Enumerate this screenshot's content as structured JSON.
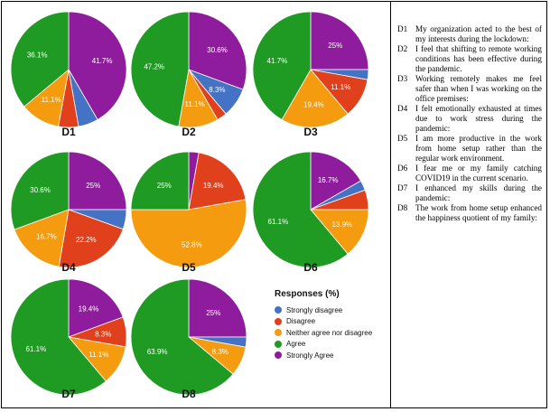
{
  "chart_data": [
    {
      "type": "pie",
      "title": "D1",
      "categories": [
        "Strongly disagree",
        "Disagree",
        "Neither agree nor disagree",
        "Agree",
        "Strongly Agree"
      ],
      "values": [
        5.6,
        5.6,
        11.1,
        36.1,
        41.7
      ],
      "labels": [
        "",
        "",
        "11.1%",
        "36.1%",
        "41.7%"
      ]
    },
    {
      "type": "pie",
      "title": "D2",
      "categories": [
        "Strongly disagree",
        "Disagree",
        "Neither agree nor disagree",
        "Agree",
        "Strongly Agree"
      ],
      "values": [
        8.3,
        2.8,
        11.1,
        47.2,
        30.6
      ],
      "labels": [
        "8.3%",
        "",
        "11.1%",
        "47.2%",
        "30.6%"
      ]
    },
    {
      "type": "pie",
      "title": "D3",
      "categories": [
        "Strongly disagree",
        "Disagree",
        "Neither agree nor disagree",
        "Agree",
        "Strongly Agree"
      ],
      "values": [
        2.8,
        11.1,
        19.4,
        41.7,
        25
      ],
      "labels": [
        "",
        "11.1%",
        "19.4%",
        "41.7%",
        "25%"
      ]
    },
    {
      "type": "pie",
      "title": "D4",
      "categories": [
        "Strongly disagree",
        "Disagree",
        "Neither agree nor disagree",
        "Agree",
        "Strongly Agree"
      ],
      "values": [
        5.5,
        22.2,
        16.7,
        30.6,
        25
      ],
      "labels": [
        "",
        "22.2%",
        "16.7%",
        "30.6%",
        "25%"
      ]
    },
    {
      "type": "pie",
      "title": "D5",
      "categories": [
        "Strongly disagree",
        "Disagree",
        "Neither agree nor disagree",
        "Agree",
        "Strongly Agree"
      ],
      "values": [
        0,
        19.4,
        52.8,
        25,
        2.8
      ],
      "labels": [
        "",
        "19.4%",
        "52.8%",
        "25%",
        ""
      ]
    },
    {
      "type": "pie",
      "title": "D6",
      "categories": [
        "Strongly disagree",
        "Disagree",
        "Neither agree nor disagree",
        "Agree",
        "Strongly Agree"
      ],
      "values": [
        2.8,
        5.5,
        13.9,
        61.1,
        16.7
      ],
      "labels": [
        "",
        "",
        "13.9%",
        "61.1%",
        "16.7%"
      ]
    },
    {
      "type": "pie",
      "title": "D7",
      "categories": [
        "Strongly disagree",
        "Disagree",
        "Neither agree nor disagree",
        "Agree",
        "Strongly Agree"
      ],
      "values": [
        0,
        8.3,
        11.1,
        61.1,
        19.4
      ],
      "labels": [
        "",
        "8.3%",
        "11.1%",
        "61.1%",
        "19.4%"
      ]
    },
    {
      "type": "pie",
      "title": "D8",
      "categories": [
        "Strongly disagree",
        "Disagree",
        "Neither agree nor disagree",
        "Agree",
        "Strongly Agree"
      ],
      "values": [
        2.8,
        0,
        8.3,
        63.9,
        25
      ],
      "labels": [
        "",
        "",
        "8.3%",
        "63.9%",
        "25%"
      ]
    }
  ],
  "legend": {
    "title": "Responses (%)",
    "items": [
      {
        "label": "Strongly disagree",
        "color": "#4472c4"
      },
      {
        "label": "Disagree",
        "color": "#e0401c"
      },
      {
        "label": "Neither agree nor disagree",
        "color": "#f59b0f"
      },
      {
        "label": "Agree",
        "color": "#1f9a23"
      },
      {
        "label": "Strongly Agree",
        "color": "#8e1c9c"
      }
    ]
  },
  "definitions": [
    {
      "code": "D1",
      "text": "My organization acted to the best of my interests during the lockdown:"
    },
    {
      "code": "D2",
      "text": "I feel that shifting to remote working conditions has been effective during the pandemic."
    },
    {
      "code": "D3",
      "text": "Working remotely makes me feel safer than when I was working on the office premises:"
    },
    {
      "code": "D4",
      "text": "I felt emotionally exhausted at times due to work stress during the pandemic:"
    },
    {
      "code": "D5",
      "text": "I am more productive in the work from home setup rather than the regular work environment."
    },
    {
      "code": "D6",
      "text": "I fear me or my family catching COVID19 in the current scenario."
    },
    {
      "code": "D7",
      "text": "I enhanced my skills during the pandemic:"
    },
    {
      "code": "D8",
      "text": "The work from home setup enhanced the happiness quotient of my family:"
    }
  ]
}
